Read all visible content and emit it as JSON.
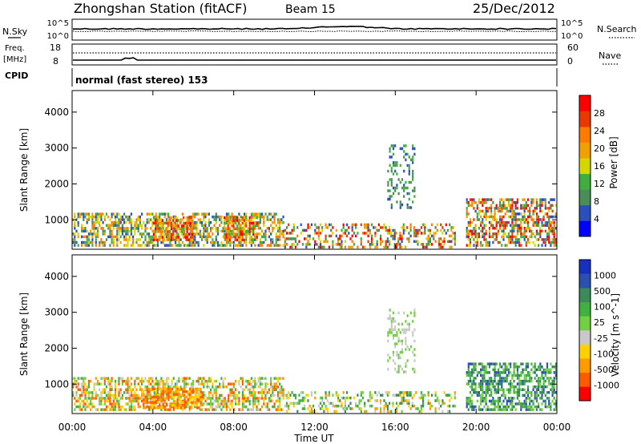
{
  "header": {
    "station": "Zhongshan Station (fitACF)",
    "beam": "Beam 15",
    "date": "25/Dec/2012"
  },
  "noise_panel": {
    "left_label": "N.Sky",
    "right_label": "N.Search",
    "ticks": [
      "10^5",
      "10^0"
    ]
  },
  "freq_panel": {
    "left_label_1": "Freq.",
    "left_label_2": "[MHz]",
    "left_ticks": [
      "18",
      "8"
    ],
    "right_label": "Nave",
    "right_ticks": [
      "60",
      "0"
    ]
  },
  "cpid": {
    "label": "CPID",
    "mode": "normal (fast stereo) 153"
  },
  "colors": {
    "power": [
      "#0000ff",
      "#2b4fbf",
      "#4a8c5a",
      "#3fae3f",
      "#d6d600",
      "#f0a000",
      "#ff7a00",
      "#e83a00",
      "#ff0000"
    ],
    "velocity": [
      "#ff0000",
      "#ff5a00",
      "#ff9a00",
      "#ffd000",
      "#c8c8c8",
      "#70d040",
      "#40b040",
      "#3a8a5a",
      "#2a50b0",
      "#1830c0"
    ]
  },
  "chart_data": [
    {
      "type": "heatmap",
      "name": "power",
      "ylabel": "Slant Range [km]",
      "colorbar_label": "Power [dB]",
      "colorbar_ticks": [
        "28",
        "24",
        "20",
        "16",
        "12",
        "8",
        "4"
      ],
      "x_ticks": [
        "00:00",
        "04:00",
        "08:00",
        "12:00",
        "16:00",
        "20:00",
        "00:00"
      ],
      "y_ticks": [
        "4000",
        "3000",
        "2000",
        "1000"
      ],
      "xlim": [
        0,
        24
      ],
      "ylim": [
        180,
        4600
      ],
      "scatter_regions": [
        {
          "t": [
            0.0,
            10.5
          ],
          "r": [
            250,
            1200
          ],
          "lvl": [
            1,
            6
          ],
          "density": 0.55
        },
        {
          "t": [
            4.0,
            6.0
          ],
          "r": [
            400,
            1100
          ],
          "lvl": [
            3,
            8
          ],
          "density": 0.7
        },
        {
          "t": [
            7.5,
            9.2
          ],
          "r": [
            400,
            1100
          ],
          "lvl": [
            3,
            8
          ],
          "density": 0.6
        },
        {
          "t": [
            10.5,
            19.0
          ],
          "r": [
            200,
            900
          ],
          "lvl": [
            1,
            8
          ],
          "density": 0.35
        },
        {
          "t": [
            15.6,
            17.0
          ],
          "r": [
            1300,
            3100
          ],
          "lvl": [
            1,
            3
          ],
          "density": 0.25
        },
        {
          "t": [
            19.5,
            24.0
          ],
          "r": [
            250,
            1600
          ],
          "lvl": [
            1,
            8
          ],
          "density": 0.55
        }
      ]
    },
    {
      "type": "heatmap",
      "name": "velocity",
      "ylabel": "Slant Range [km]",
      "colorbar_label": "Velocity [m s^-1]",
      "colorbar_ticks": [
        "1000",
        "500",
        "100",
        "25",
        "-25",
        "-100",
        "-500",
        "-1000"
      ],
      "x_ticks": [
        "00:00",
        "04:00",
        "08:00",
        "12:00",
        "16:00",
        "20:00",
        "00:00"
      ],
      "y_ticks": [
        "4000",
        "3000",
        "2000",
        "1000"
      ],
      "xlabel": "Time UT",
      "xlim": [
        0,
        24
      ],
      "ylim": [
        180,
        4600
      ],
      "scatter_regions": [
        {
          "t": [
            0.0,
            10.5
          ],
          "r": [
            250,
            1200
          ],
          "lvl": [
            1,
            6
          ],
          "density": 0.55
        },
        {
          "t": [
            3.5,
            6.5
          ],
          "r": [
            300,
            900
          ],
          "lvl": [
            1,
            3
          ],
          "density": 0.65
        },
        {
          "t": [
            10.5,
            19.0
          ],
          "r": [
            200,
            800
          ],
          "lvl": [
            2,
            7
          ],
          "density": 0.35
        },
        {
          "t": [
            15.6,
            17.0
          ],
          "r": [
            1300,
            3100
          ],
          "lvl": [
            4,
            5
          ],
          "density": 0.25
        },
        {
          "t": [
            19.5,
            24.0
          ],
          "r": [
            250,
            1600
          ],
          "lvl": [
            5,
            8
          ],
          "density": 0.6
        }
      ]
    }
  ]
}
